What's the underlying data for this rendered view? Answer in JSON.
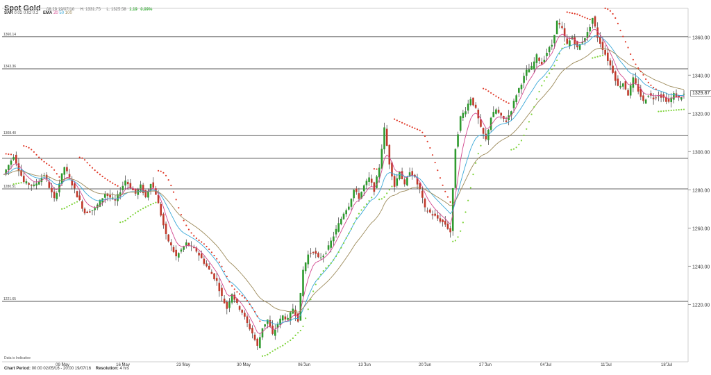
{
  "header": {
    "title": "Spot Gold",
    "timestamp": "08:29 19/07/16",
    "high_label": "H: 1331.75",
    "low_label": "L: 1325.58",
    "change": "1.19",
    "change_pct": "0.09%",
    "change_color": "#1aa31a"
  },
  "indicators": {
    "sar_label": "SAR",
    "sar_params": "0.02  0.02  0.2",
    "ema_label": "EMA",
    "ema_20": "20",
    "ema_50": "50",
    "ema_100": "100"
  },
  "footer": {
    "disclaimer": "Data is Indicative",
    "period_label": "Chart Period:",
    "period_value": "00:00 02/05/16 - 20:00 19/07/16",
    "resolution_label": "Resolution:",
    "resolution_value": "4 hrs"
  },
  "chart_data": {
    "type": "candlestick",
    "instrument": "Spot Gold",
    "ylim": [
      1190,
      1375
    ],
    "y_ticks": [
      1220,
      1240,
      1260,
      1280,
      1300,
      1320,
      1340,
      1360
    ],
    "y_tick_labels": [
      "1220.00",
      "1240.00",
      "1260.00",
      "1280.00",
      "1300.00",
      "1320.00",
      "1340.00",
      "1360.00"
    ],
    "x_ticks": [
      "09 May",
      "16 May",
      "23 May",
      "30 May",
      "06 Jun",
      "13 Jun",
      "20 Jun",
      "27 Jun",
      "04 Jul",
      "11 Jul",
      "18 Jul"
    ],
    "current_price": "1329.87",
    "horizontal_levels": [
      {
        "value": 1360.14,
        "label": "1360.14"
      },
      {
        "value": 1343.36,
        "label": "1343.36"
      },
      {
        "value": 1308.4,
        "label": "1308.40"
      },
      {
        "value": 1296.5,
        "label": ""
      },
      {
        "value": 1280.51,
        "label": "1280.51"
      },
      {
        "value": 1221.65,
        "label": "1221.65"
      }
    ],
    "price_path": [
      [
        0,
        1288
      ],
      [
        4,
        1298
      ],
      [
        8,
        1284
      ],
      [
        12,
        1282
      ],
      [
        16,
        1288
      ],
      [
        20,
        1275
      ],
      [
        24,
        1292
      ],
      [
        28,
        1280
      ],
      [
        32,
        1268
      ],
      [
        36,
        1270
      ],
      [
        40,
        1278
      ],
      [
        44,
        1274
      ],
      [
        48,
        1285
      ],
      [
        52,
        1278
      ],
      [
        54,
        1282
      ],
      [
        56,
        1276
      ],
      [
        58,
        1284
      ],
      [
        60,
        1278
      ],
      [
        64,
        1256
      ],
      [
        68,
        1245
      ],
      [
        72,
        1252
      ],
      [
        76,
        1248
      ],
      [
        80,
        1240
      ],
      [
        84,
        1232
      ],
      [
        86,
        1224
      ],
      [
        88,
        1218
      ],
      [
        90,
        1226
      ],
      [
        92,
        1220
      ],
      [
        94,
        1216
      ],
      [
        96,
        1210
      ],
      [
        98,
        1205
      ],
      [
        100,
        1198
      ],
      [
        102,
        1208
      ],
      [
        104,
        1212
      ],
      [
        106,
        1204
      ],
      [
        108,
        1210
      ],
      [
        110,
        1214
      ],
      [
        112,
        1212
      ],
      [
        114,
        1218
      ],
      [
        116,
        1212
      ],
      [
        118,
        1238
      ],
      [
        120,
        1246
      ],
      [
        122,
        1248
      ],
      [
        124,
        1244
      ],
      [
        126,
        1246
      ],
      [
        128,
        1250
      ],
      [
        130,
        1256
      ],
      [
        132,
        1262
      ],
      [
        134,
        1268
      ],
      [
        136,
        1272
      ],
      [
        138,
        1280
      ],
      [
        140,
        1276
      ],
      [
        142,
        1282
      ],
      [
        144,
        1286
      ],
      [
        146,
        1280
      ],
      [
        148,
        1292
      ],
      [
        150,
        1312
      ],
      [
        152,
        1294
      ],
      [
        154,
        1282
      ],
      [
        156,
        1290
      ],
      [
        158,
        1282
      ],
      [
        160,
        1290
      ],
      [
        162,
        1286
      ],
      [
        164,
        1280
      ],
      [
        166,
        1270
      ],
      [
        168,
        1268
      ],
      [
        170,
        1266
      ],
      [
        172,
        1264
      ],
      [
        174,
        1262
      ],
      [
        176,
        1258
      ],
      [
        178,
        1302
      ],
      [
        180,
        1318
      ],
      [
        182,
        1322
      ],
      [
        184,
        1328
      ],
      [
        186,
        1322
      ],
      [
        188,
        1312
      ],
      [
        190,
        1306
      ],
      [
        192,
        1318
      ],
      [
        194,
        1322
      ],
      [
        196,
        1318
      ],
      [
        198,
        1316
      ],
      [
        200,
        1322
      ],
      [
        202,
        1330
      ],
      [
        204,
        1336
      ],
      [
        206,
        1342
      ],
      [
        208,
        1344
      ],
      [
        210,
        1350
      ],
      [
        212,
        1346
      ],
      [
        214,
        1352
      ],
      [
        216,
        1356
      ],
      [
        218,
        1368
      ],
      [
        220,
        1364
      ],
      [
        222,
        1356
      ],
      [
        224,
        1360
      ],
      [
        226,
        1354
      ],
      [
        228,
        1358
      ],
      [
        230,
        1362
      ],
      [
        232,
        1370
      ],
      [
        234,
        1360
      ],
      [
        236,
        1354
      ],
      [
        238,
        1348
      ],
      [
        240,
        1342
      ],
      [
        242,
        1334
      ],
      [
        244,
        1336
      ],
      [
        246,
        1330
      ],
      [
        248,
        1338
      ],
      [
        250,
        1332
      ],
      [
        252,
        1326
      ],
      [
        254,
        1330
      ],
      [
        256,
        1328
      ],
      [
        258,
        1330
      ],
      [
        260,
        1328
      ],
      [
        262,
        1326
      ],
      [
        264,
        1330
      ],
      [
        266,
        1328
      ],
      [
        268,
        1330
      ]
    ]
  }
}
